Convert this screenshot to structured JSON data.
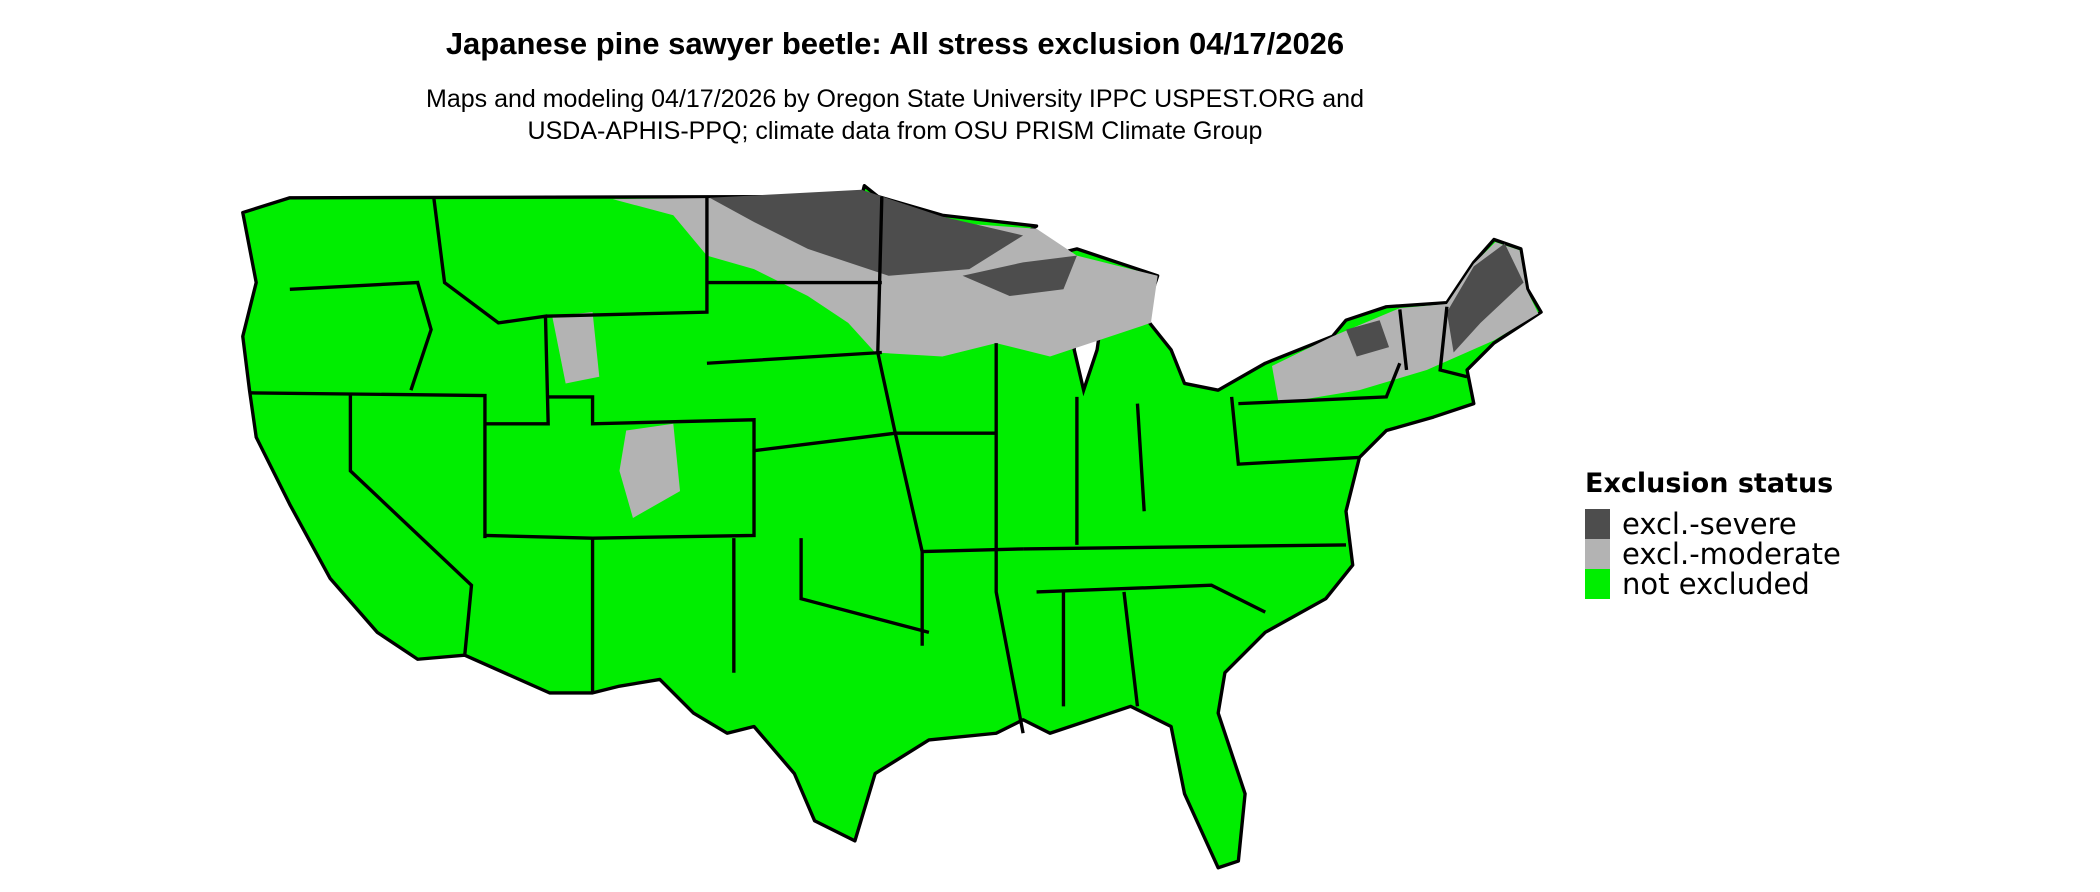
{
  "title": "Japanese pine sawyer beetle: All stress exclusion 04/17/2026",
  "subtitle_line1": "Maps and modeling 04/17/2026 by Oregon State University IPPC USPEST.ORG and",
  "subtitle_line2": "USDA-APHIS-PPQ; climate data from OSU PRISM Climate Group",
  "map": {
    "region": "Contiguous United States",
    "boundaries": "state outlines"
  },
  "legend": {
    "title": "Exclusion status",
    "items": [
      {
        "label": "excl.-severe",
        "color": "#4d4d4d"
      },
      {
        "label": "excl.-moderate",
        "color": "#b3b3b3"
      },
      {
        "label": "not excluded",
        "color": "#00ee00"
      }
    ]
  }
}
